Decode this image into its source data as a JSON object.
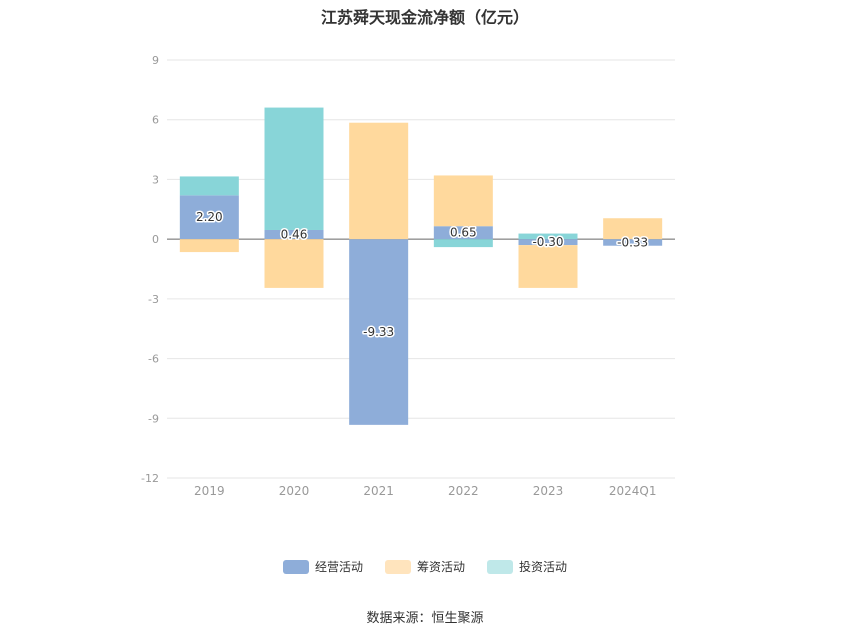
{
  "chart_data": {
    "type": "bar",
    "stacked": true,
    "title": "江苏舜天现金流净额（亿元）",
    "categories": [
      "2019",
      "2020",
      "2021",
      "2022",
      "2023",
      "2024Q1"
    ],
    "series": [
      {
        "name": "经营活动",
        "color": "#8eadd9",
        "values": [
          2.2,
          0.46,
          -9.33,
          0.65,
          -0.3,
          -0.33
        ],
        "labels": [
          "2.20",
          "0.46",
          "-9.33",
          "0.65",
          "-0.30",
          "-0.33"
        ]
      },
      {
        "name": "筹资活动",
        "color": "#ffd99d",
        "values": [
          -0.65,
          -2.45,
          5.85,
          2.55,
          -2.15,
          1.05
        ]
      },
      {
        "name": "投资活动",
        "color": "#88d5d8",
        "values": [
          0.95,
          6.15,
          0.0,
          -0.4,
          0.28,
          0.0
        ]
      }
    ],
    "yticks": [
      9,
      6,
      3,
      0,
      -3,
      -6,
      -9,
      -12
    ],
    "ylim": [
      -12,
      9
    ],
    "grid": true,
    "legend_position": "bottom"
  },
  "legend_swatches": [
    "#8eadd9",
    "#ffe4bd",
    "#bfe8e9"
  ],
  "source_text": "数据来源：恒生聚源"
}
